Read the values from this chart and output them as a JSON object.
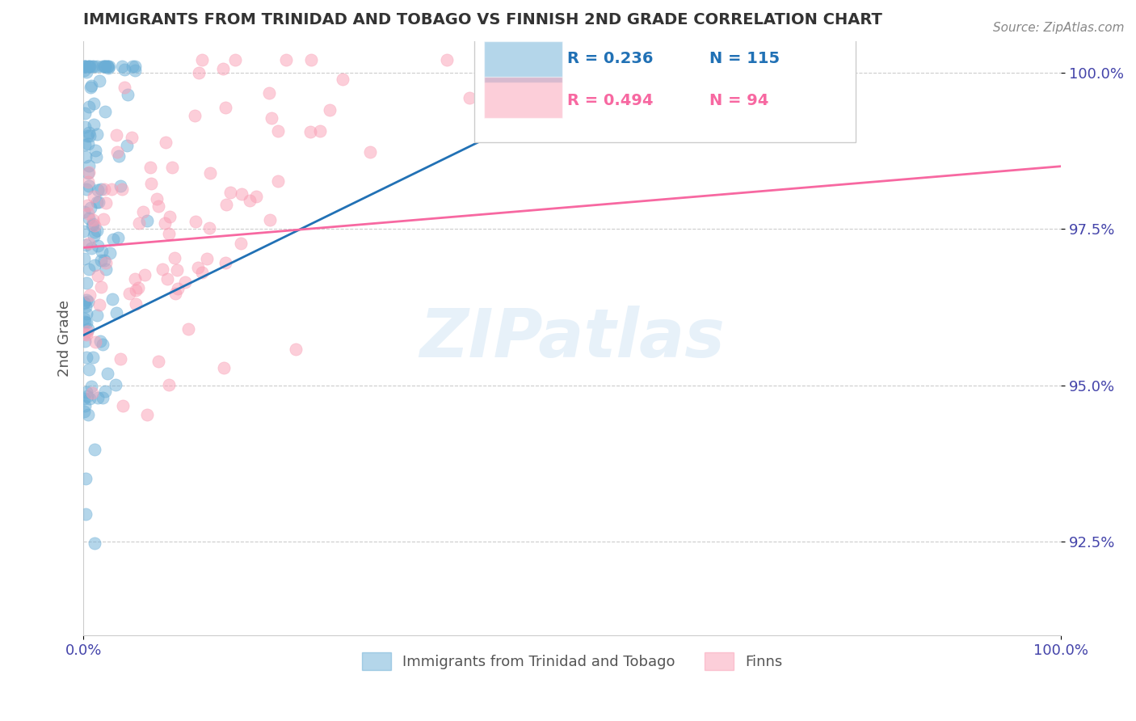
{
  "title": "IMMIGRANTS FROM TRINIDAD AND TOBAGO VS FINNISH 2ND GRADE CORRELATION CHART",
  "source": "Source: ZipAtlas.com",
  "xlabel": "",
  "ylabel": "2nd Grade",
  "xmin": 0.0,
  "xmax": 1.0,
  "ymin": 0.91,
  "ymax": 1.005,
  "yticks": [
    0.925,
    0.95,
    0.975,
    1.0
  ],
  "yticklabels": [
    "92.5%",
    "95.0%",
    "97.5%",
    "100.0%"
  ],
  "xticks": [
    0.0,
    1.0
  ],
  "xticklabels": [
    "0.0%",
    "100.0%"
  ],
  "blue_color": "#6baed6",
  "pink_color": "#fa9fb5",
  "blue_line_color": "#2171b5",
  "pink_line_color": "#f768a1",
  "R_blue": 0.236,
  "N_blue": 115,
  "R_pink": 0.494,
  "N_pink": 94,
  "legend_R_blue_text": "R = 0.236",
  "legend_N_blue_text": "N = 115",
  "legend_R_pink_text": "R = 0.494",
  "legend_N_pink_text": "N = 94",
  "legend_label_blue": "Immigrants from Trinidad and Tobago",
  "legend_label_pink": "Finns",
  "watermark": "ZIPatlas",
  "grid_color": "#cccccc",
  "title_color": "#333333",
  "axis_label_color": "#555555",
  "tick_color": "#4444aa",
  "background_color": "#ffffff"
}
